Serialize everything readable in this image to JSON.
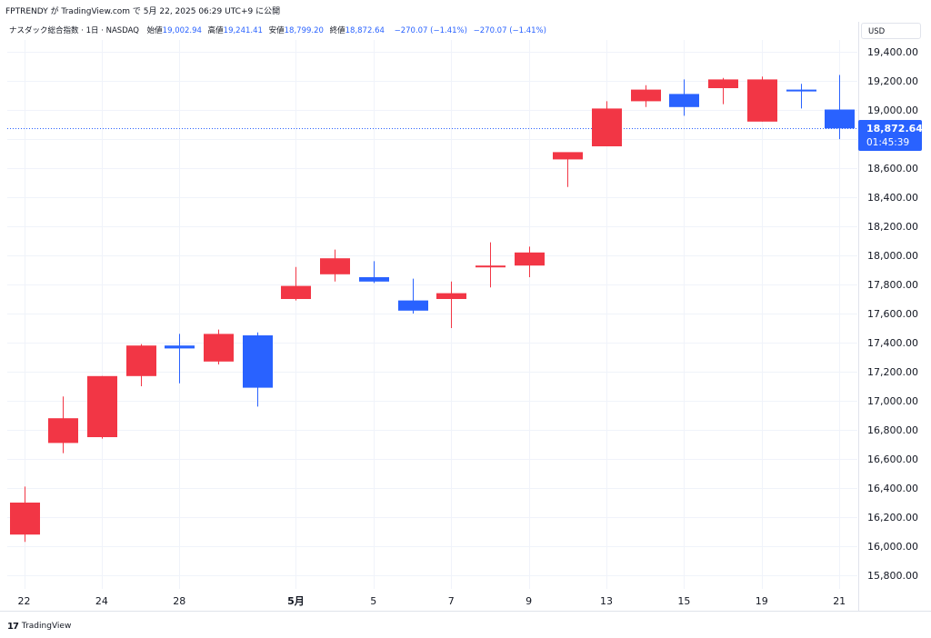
{
  "header": {
    "publish_line": "FPTRENDY が TradingView.com で 5月 22, 2025 06:29 UTC+9 に公開"
  },
  "legend": {
    "symbol": "ナスダック総合指数 · 1日 · NASDAQ",
    "open_label": "始値",
    "open_value": "19,002.94",
    "high_label": "高値",
    "high_value": "19,241.41",
    "low_label": "安値",
    "low_value": "18,799.20",
    "close_label": "終値",
    "close_value": "18,872.64",
    "change": "−270.07 (−1.41%)",
    "change2": "−270.07 (−1.41%)"
  },
  "currency": "USD",
  "price_marker": {
    "price": "18,872.64",
    "countdown": "01:45:39",
    "value": 18872.64
  },
  "footer": {
    "brand_icon": "tradingview-logo-icon",
    "brand": "TradingView"
  },
  "colors": {
    "up": "#f23645",
    "down": "#2962ff",
    "grid": "#f0f3fa",
    "marker_bg": "#2962ff"
  },
  "chart_data": {
    "type": "candlestick",
    "y_axis_label": "USD",
    "ylim": [
      15700,
      19520
    ],
    "yticks": [
      15800,
      16000,
      16200,
      16400,
      16600,
      16800,
      17000,
      17200,
      17400,
      17600,
      17800,
      18000,
      18200,
      18400,
      18600,
      18800,
      19000,
      19200,
      19400
    ],
    "ytick_labels": [
      "15,800.00",
      "16,000.00",
      "16,200.00",
      "16,400.00",
      "16,600.00",
      "16,800.00",
      "17,000.00",
      "17,200.00",
      "17,400.00",
      "17,600.00",
      "17,800.00",
      "18,000.00",
      "18,200.00",
      "18,400.00",
      "18,600.00",
      "18,800.00",
      "19,000.00",
      "19,200.00",
      "19,400.00"
    ],
    "xtick_labels": [
      {
        "index": 0,
        "label": "22",
        "bold": false
      },
      {
        "index": 2,
        "label": "24",
        "bold": false
      },
      {
        "index": 4,
        "label": "28",
        "bold": false
      },
      {
        "index": 7,
        "label": "5月",
        "bold": true
      },
      {
        "index": 9,
        "label": "5",
        "bold": false
      },
      {
        "index": 11,
        "label": "7",
        "bold": false
      },
      {
        "index": 13,
        "label": "9",
        "bold": false
      },
      {
        "index": 15,
        "label": "13",
        "bold": false
      },
      {
        "index": 17,
        "label": "15",
        "bold": false
      },
      {
        "index": 19,
        "label": "19",
        "bold": false
      },
      {
        "index": 21,
        "label": "21",
        "bold": false
      }
    ],
    "candles": [
      {
        "date": "4/22",
        "open": 16080,
        "high": 16410,
        "low": 16030,
        "close": 16300
      },
      {
        "date": "4/23",
        "open": 16710,
        "high": 17030,
        "low": 16640,
        "close": 16880
      },
      {
        "date": "4/24",
        "open": 16750,
        "high": 17170,
        "low": 16740,
        "close": 17170
      },
      {
        "date": "4/25",
        "open": 17170,
        "high": 17390,
        "low": 17100,
        "close": 17380
      },
      {
        "date": "4/28",
        "open": 17380,
        "high": 17460,
        "low": 17120,
        "close": 17360
      },
      {
        "date": "4/29",
        "open": 17270,
        "high": 17490,
        "low": 17250,
        "close": 17460
      },
      {
        "date": "4/30",
        "open": 17450,
        "high": 17470,
        "low": 16960,
        "close": 17090
      },
      {
        "date": "5/1",
        "open": 17700,
        "high": 17920,
        "low": 17690,
        "close": 17790
      },
      {
        "date": "5/2",
        "open": 17870,
        "high": 18040,
        "low": 17820,
        "close": 17980
      },
      {
        "date": "5/5",
        "open": 17850,
        "high": 17960,
        "low": 17810,
        "close": 17820
      },
      {
        "date": "5/6",
        "open": 17690,
        "high": 17840,
        "low": 17600,
        "close": 17620
      },
      {
        "date": "5/7",
        "open": 17700,
        "high": 17820,
        "low": 17500,
        "close": 17740
      },
      {
        "date": "5/8",
        "open": 17920,
        "high": 18090,
        "low": 17780,
        "close": 17930
      },
      {
        "date": "5/9",
        "open": 17930,
        "high": 18060,
        "low": 17850,
        "close": 18020
      },
      {
        "date": "5/12",
        "open": 18660,
        "high": 18700,
        "low": 18470,
        "close": 18710
      },
      {
        "date": "5/13",
        "open": 18750,
        "high": 19060,
        "low": 18750,
        "close": 19010
      },
      {
        "date": "5/14",
        "open": 19060,
        "high": 19170,
        "low": 19020,
        "close": 19140
      },
      {
        "date": "5/15",
        "open": 19110,
        "high": 19210,
        "low": 18960,
        "close": 19020
      },
      {
        "date": "5/16",
        "open": 19150,
        "high": 19220,
        "low": 19040,
        "close": 19210
      },
      {
        "date": "5/19",
        "open": 18920,
        "high": 19230,
        "low": 18920,
        "close": 19210
      },
      {
        "date": "5/20",
        "open": 19140,
        "high": 19180,
        "low": 19010,
        "close": 19130
      },
      {
        "date": "5/21",
        "open": 19003,
        "high": 19241,
        "low": 18799,
        "close": 18873
      }
    ]
  }
}
